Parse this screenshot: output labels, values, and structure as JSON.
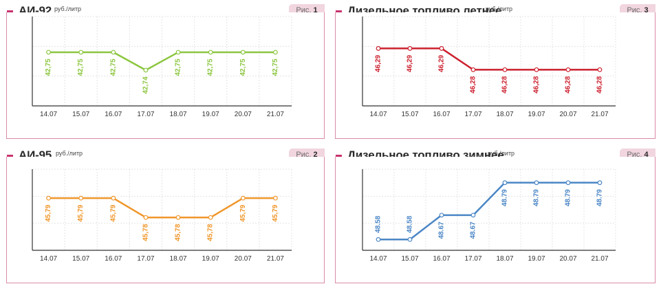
{
  "panels": [
    {
      "title": "АИ-92",
      "unit": "руб./литр",
      "fig_label": "Рис.",
      "fig_num": "1",
      "color": "#8cc63f",
      "chart_data": {
        "type": "line",
        "categories": [
          "14.07",
          "15.07",
          "16.07",
          "17.07",
          "18.07",
          "19.07",
          "20.07",
          "21.07"
        ],
        "values": [
          42.75,
          42.75,
          42.75,
          42.74,
          42.75,
          42.75,
          42.75,
          42.75
        ],
        "labels": [
          "42,75",
          "42,75",
          "42,75",
          "42,74",
          "42,75",
          "42,75",
          "42,75",
          "42,75"
        ],
        "ylim": [
          42.72,
          42.77
        ]
      }
    },
    {
      "title": "Дизельное топливо летнее",
      "unit": "руб./литр",
      "fig_label": "Рис.",
      "fig_num": "3",
      "color": "#cc1f2d",
      "chart_data": {
        "type": "line",
        "categories": [
          "14.07",
          "15.07",
          "16.07",
          "17.07",
          "18.07",
          "19.07",
          "20.07",
          "21.07"
        ],
        "values": [
          46.29,
          46.29,
          46.29,
          46.28,
          46.28,
          46.28,
          46.28,
          46.28
        ],
        "labels": [
          "46,29",
          "46,29",
          "46,29",
          "46,28",
          "46,28",
          "46,28",
          "46,28",
          "46,28"
        ],
        "ylim": [
          46.263,
          46.305
        ]
      }
    },
    {
      "title": "АИ-95",
      "unit": "руб./литр",
      "fig_label": "Рис.",
      "fig_num": "2",
      "color": "#f0962a",
      "chart_data": {
        "type": "line",
        "categories": [
          "14.07",
          "15.07",
          "16.07",
          "17.07",
          "18.07",
          "19.07",
          "20.07",
          "21.07"
        ],
        "values": [
          45.79,
          45.79,
          45.79,
          45.78,
          45.78,
          45.78,
          45.79,
          45.79
        ],
        "labels": [
          "45,79",
          "45,79",
          "45,79",
          "45,78",
          "45,78",
          "45,78",
          "45,79",
          "45,79"
        ],
        "ylim": [
          45.763,
          45.805
        ]
      }
    },
    {
      "title": "Дизельное топливо зимнее",
      "unit": "руб./литр",
      "fig_label": "Рис.",
      "fig_num": "4",
      "color": "#4a86c5",
      "chart_data": {
        "type": "line",
        "categories": [
          "14.07",
          "15.07",
          "16.07",
          "17.07",
          "18.07",
          "19.07",
          "20.07",
          "21.07"
        ],
        "values": [
          48.58,
          48.58,
          48.67,
          48.67,
          48.79,
          48.79,
          48.79,
          48.79
        ],
        "labels": [
          "48.58",
          "48.58",
          "48.67",
          "48.67",
          "48.79",
          "48.79",
          "48.79",
          "48.79"
        ],
        "ylim": [
          48.54,
          48.84
        ]
      }
    }
  ]
}
